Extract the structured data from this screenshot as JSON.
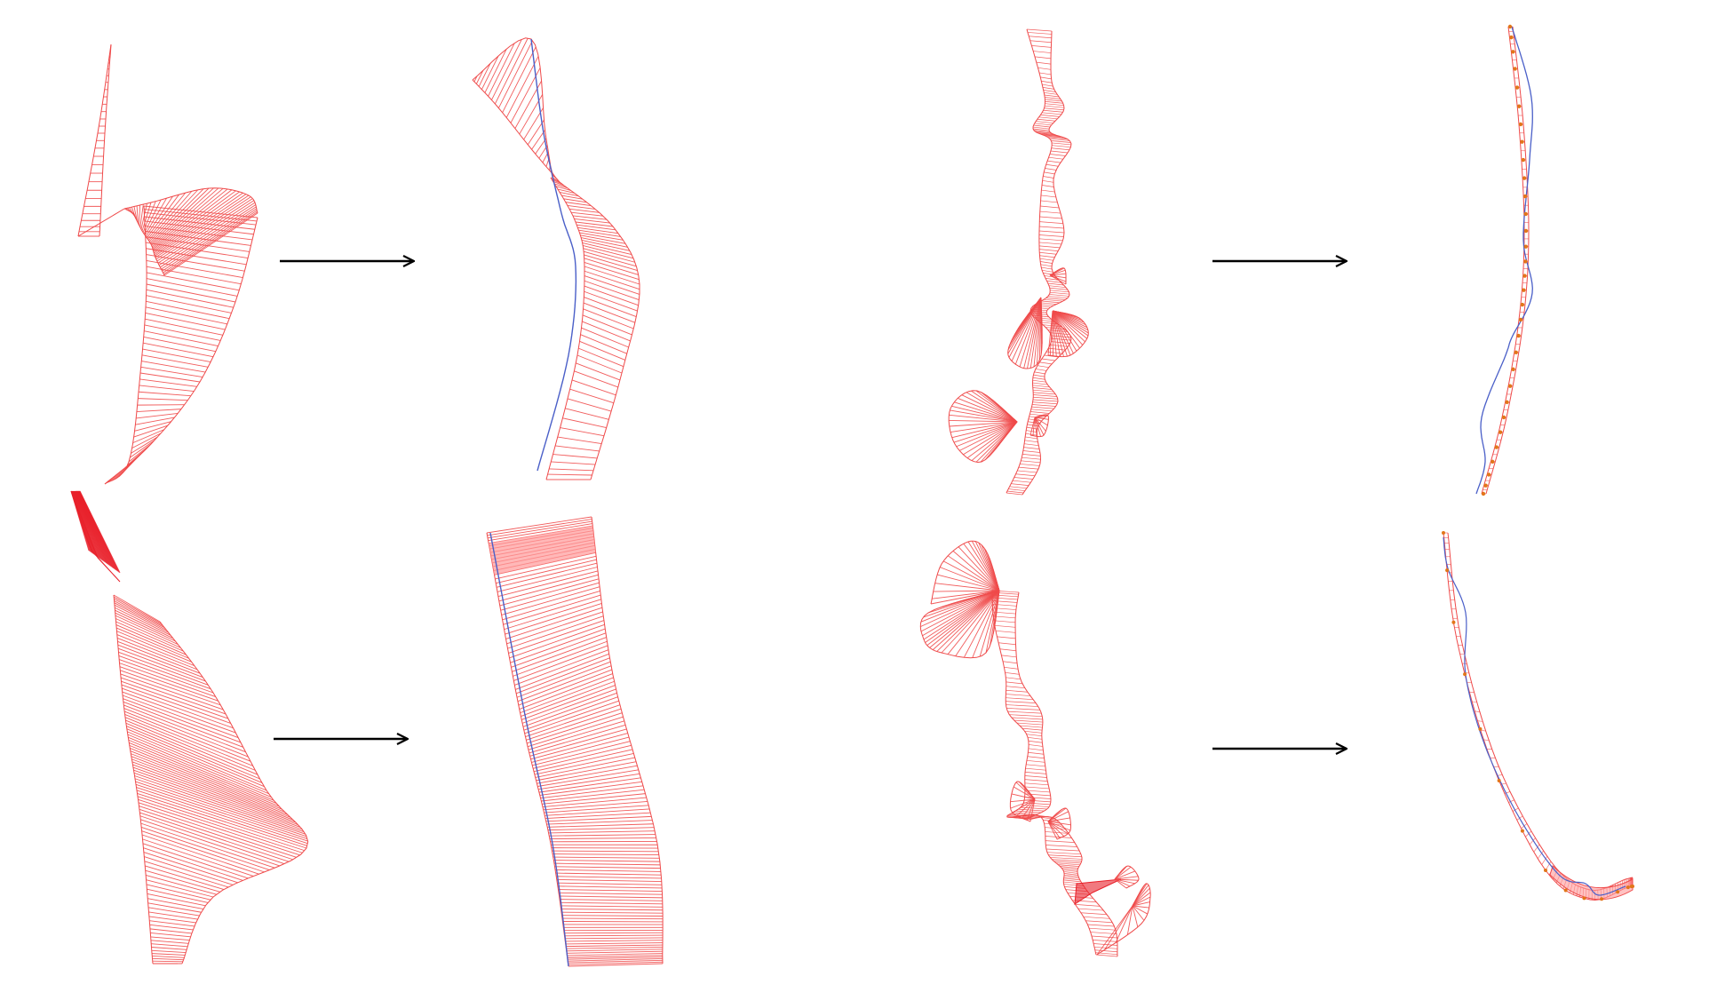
{
  "colors": {
    "ruling": "#ef4a4a",
    "ruling_dense": "#e8202a",
    "ruling_fill": "#ff9a9a",
    "curve": "#4a5fc8",
    "points": "#e2761a",
    "arrow": "#000000",
    "background": "#ffffff"
  },
  "panels": [
    {
      "name": "top-left-input",
      "kind": "ribbon-input"
    },
    {
      "name": "top-left-output",
      "kind": "ribbon-output"
    },
    {
      "name": "top-right-input",
      "kind": "twisted-strip-input"
    },
    {
      "name": "top-right-output",
      "kind": "thin-strip-output"
    },
    {
      "name": "bottom-left-input",
      "kind": "ribbon-input"
    },
    {
      "name": "bottom-left-output",
      "kind": "band-output"
    },
    {
      "name": "bottom-right-input",
      "kind": "twisted-strip-input"
    },
    {
      "name": "bottom-right-output",
      "kind": "thin-strip-output"
    }
  ],
  "arrows": [
    {
      "name": "arrow-top-left",
      "icon": "right-arrow-icon"
    },
    {
      "name": "arrow-bottom-left",
      "icon": "right-arrow-icon"
    },
    {
      "name": "arrow-top-right",
      "icon": "right-arrow-icon"
    },
    {
      "name": "arrow-bottom-right",
      "icon": "right-arrow-icon"
    }
  ]
}
